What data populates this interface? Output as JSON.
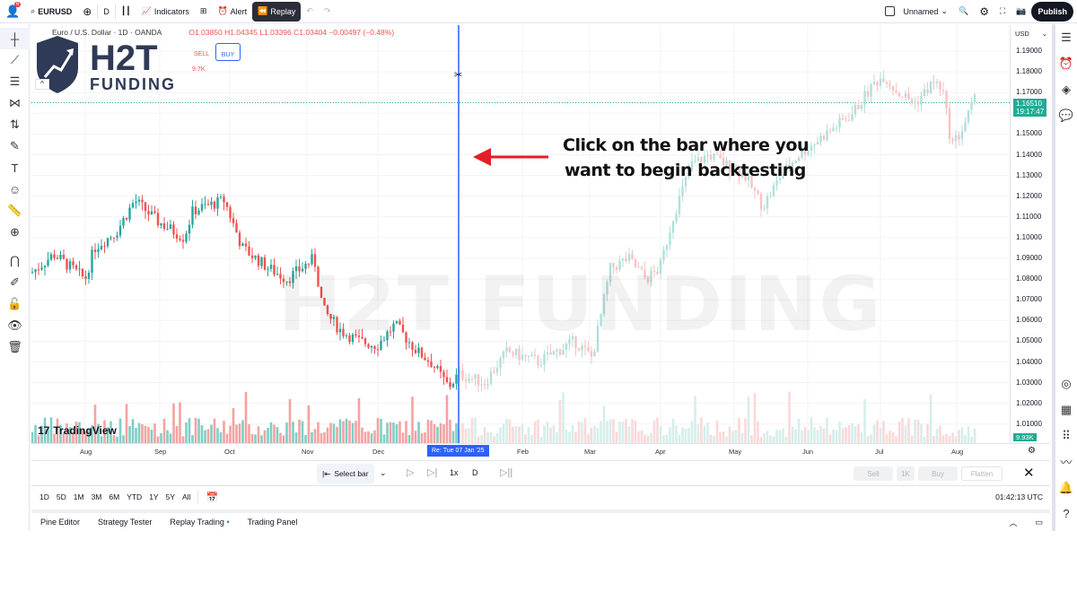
{
  "topbar": {
    "avatar_badge": "6",
    "symbol": "EURUSD",
    "interval": "D",
    "indicators": "Indicators",
    "alert": "Alert",
    "replay": "Replay",
    "layout_name": "Unnamed",
    "publish": "Publish"
  },
  "legend": {
    "title": "Euro / U.S. Dollar · 1D · OANDA",
    "open": "O1.03850",
    "high": "H1.04345",
    "low": "L1.03396",
    "close": "C1.03404",
    "change": "−0.00497 (−0.48%)",
    "sell": "SELL",
    "buy": "BUY",
    "vol": "9.7K"
  },
  "logo": {
    "line1": "H2T",
    "line2": "FUNDING"
  },
  "watermark": "H2T FUNDING",
  "annotation": {
    "line1": "Click on the bar where you",
    "line2": "want to begin backtesting"
  },
  "price_axis": {
    "currency": "USD",
    "labels": [
      "1.19000",
      "1.18000",
      "1.17000",
      "1.15000",
      "1.14000",
      "1.13000",
      "1.12000",
      "1.11000",
      "1.10000",
      "1.09000",
      "1.08000",
      "1.07000",
      "1.06000",
      "1.05000",
      "1.04000",
      "1.03000",
      "1.02000",
      "1.01000"
    ],
    "current_price": "1.16510",
    "countdown": "19:17:47",
    "volume_badge": "9.93K"
  },
  "time_axis": {
    "labels": [
      "Aug",
      "Sep",
      "Oct",
      "Nov",
      "Dec",
      "Feb",
      "Mar",
      "Apr",
      "May",
      "Jun",
      "Jul",
      "Aug"
    ],
    "replay_marker": "Re: Tue 07 Jan '25"
  },
  "tradingview": "TradingView",
  "replay_controls": {
    "select_bar": "Select bar",
    "speed": "1x",
    "interval": "D",
    "sell": "Sell",
    "qty": "1K",
    "buy": "Buy",
    "flatten": "Flatten"
  },
  "ranges": [
    "1D",
    "5D",
    "1M",
    "3M",
    "6M",
    "YTD",
    "1Y",
    "5Y",
    "All"
  ],
  "clock": "01:42:13 UTC",
  "bottom_tabs": [
    "Pine Editor",
    "Strategy Tester",
    "Replay Trading",
    "Trading Panel"
  ],
  "colors": {
    "up": "#26a69a",
    "down": "#ef5350",
    "replay_line": "#2962ff",
    "accent": "#2962ff",
    "arrow": "#e31e24"
  }
}
